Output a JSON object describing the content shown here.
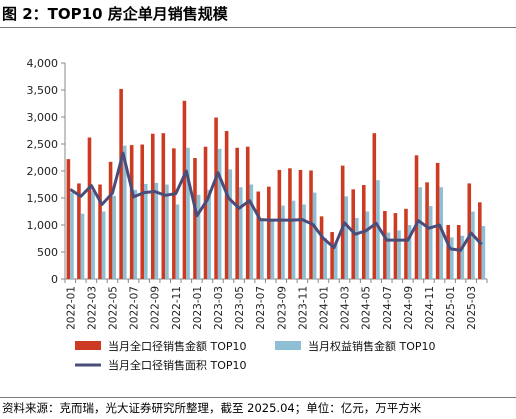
{
  "title": "图 2：TOP10 房企单月销售规模",
  "source_note": "资料来源：克而瑞，光大证券研究所整理，截至 2025.04；单位：亿元，万平方米",
  "colors": {
    "series_bar_full": "#cc3a22",
    "series_bar_equity": "#8fbfd4",
    "series_line_area": "#4a4c7a"
  },
  "chart_data": {
    "type": "bar",
    "categories": [
      "2022-01",
      "2022-02",
      "2022-03",
      "2022-04",
      "2022-05",
      "2022-06",
      "2022-07",
      "2022-08",
      "2022-09",
      "2022-10",
      "2022-11",
      "2022-12",
      "2023-01",
      "2023-02",
      "2023-03",
      "2023-04",
      "2023-05",
      "2023-06",
      "2023-07",
      "2023-08",
      "2023-09",
      "2023-10",
      "2023-11",
      "2023-12",
      "2024-01",
      "2024-02",
      "2024-03",
      "2024-04",
      "2024-05",
      "2024-06",
      "2024-07",
      "2024-08",
      "2024-09",
      "2024-10",
      "2024-11",
      "2024-12",
      "2025-01",
      "2025-02",
      "2025-03",
      "2025-04"
    ],
    "xtick_labels": [
      "2022-01",
      "2022-03",
      "2022-05",
      "2022-07",
      "2022-09",
      "2022-11",
      "2023-01",
      "2023-03",
      "2023-05",
      "2023-07",
      "2023-09",
      "2023-11",
      "2024-01",
      "2024-03",
      "2024-05",
      "2024-07",
      "2024-09",
      "2024-11",
      "2025-01",
      "2025-03"
    ],
    "yticks": [
      "0",
      "500",
      "1,000",
      "1,500",
      "2,000",
      "2,500",
      "3,000",
      "3,500",
      "4,000"
    ],
    "ylim": [
      0,
      4000
    ],
    "series": [
      {
        "name": "当月全口径销售金额 TOP10",
        "kind": "bar",
        "values": [
          2220,
          1770,
          2620,
          1750,
          2170,
          3520,
          2480,
          2490,
          2690,
          2700,
          2420,
          3300,
          2240,
          2450,
          2990,
          2740,
          2430,
          2450,
          1620,
          1710,
          2020,
          2050,
          2020,
          2010,
          1160,
          870,
          2100,
          1660,
          1740,
          2700,
          1260,
          1220,
          1300,
          2290,
          1790,
          2150,
          1000,
          1000,
          1770,
          1420
        ]
      },
      {
        "name": "当月权益销售金额 TOP10",
        "kind": "bar",
        "values": [
          1600,
          1210,
          1630,
          1250,
          1540,
          2470,
          1650,
          1760,
          1780,
          1750,
          1380,
          2430,
          1560,
          1650,
          2410,
          2030,
          1700,
          1750,
          1100,
          1100,
          1360,
          1450,
          1380,
          1600,
          760,
          670,
          1530,
          1130,
          1250,
          1830,
          860,
          900,
          1000,
          1700,
          1350,
          1700,
          770,
          800,
          1250,
          980
        ]
      },
      {
        "name": "当月全口径销售面积 TOP10",
        "kind": "line",
        "values": [
          1660,
          1530,
          1730,
          1380,
          1590,
          2330,
          1520,
          1600,
          1620,
          1550,
          1580,
          2000,
          1170,
          1470,
          1970,
          1500,
          1310,
          1450,
          1100,
          1090,
          1090,
          1090,
          1100,
          1010,
          750,
          580,
          1040,
          830,
          890,
          1030,
          720,
          720,
          720,
          1080,
          940,
          1000,
          560,
          530,
          850,
          640
        ]
      }
    ],
    "legend_position": "bottom",
    "grid": false,
    "xlabel": "",
    "ylabel": ""
  }
}
